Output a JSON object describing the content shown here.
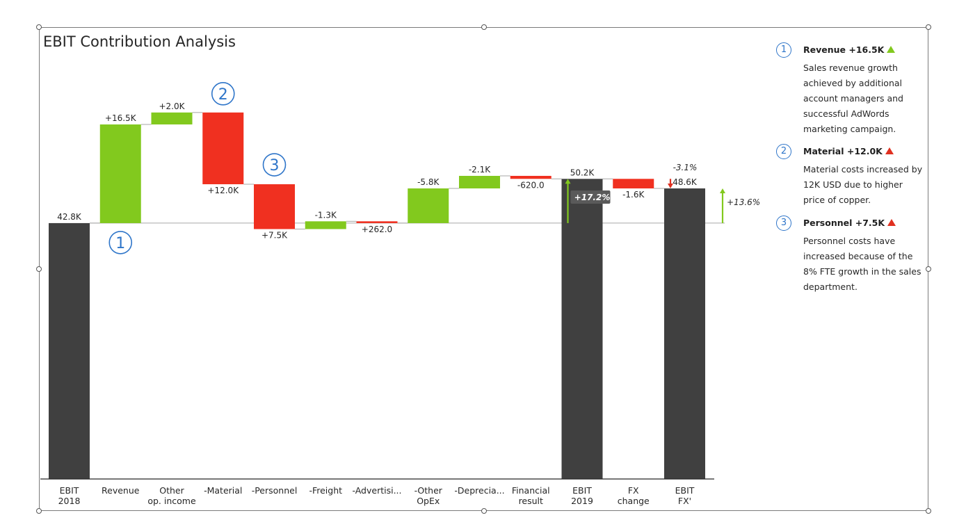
{
  "chart_data": {
    "type": "waterfall",
    "title": "EBIT Contribution Analysis",
    "baseline_value": 0,
    "categories": [
      "EBIT\n2018",
      "Revenue",
      "Other\nop. income",
      "-Material",
      "-Personnel",
      "-Freight",
      "-Advertisi...",
      "-Other\nOpEx",
      "-Deprecia...",
      "Financial\nresult",
      "EBIT\n2019",
      "FX\nchange",
      "EBIT\nFX'"
    ],
    "bars": [
      {
        "kind": "total",
        "start": 0,
        "end": 42.8,
        "label": "42.8K",
        "color": "#404040"
      },
      {
        "kind": "up",
        "start": 42.8,
        "end": 59.3,
        "label": "+16.5K",
        "color": "#82c91e"
      },
      {
        "kind": "up",
        "start": 59.3,
        "end": 61.3,
        "label": "+2.0K",
        "color": "#82c91e"
      },
      {
        "kind": "down",
        "start": 61.3,
        "end": 49.3,
        "label": "+12.0K",
        "color": "#f03020"
      },
      {
        "kind": "down",
        "start": 49.3,
        "end": 41.8,
        "label": "+7.5K",
        "color": "#f03020"
      },
      {
        "kind": "up",
        "start": 41.8,
        "end": 43.1,
        "label": "-1.3K",
        "color": "#82c91e"
      },
      {
        "kind": "down",
        "start": 43.1,
        "end": 42.8,
        "label": "+262.0",
        "color": "#f03020"
      },
      {
        "kind": "up",
        "start": 42.8,
        "end": 48.6,
        "label": "-5.8K",
        "color": "#82c91e"
      },
      {
        "kind": "up",
        "start": 48.6,
        "end": 50.7,
        "label": "-2.1K",
        "color": "#82c91e"
      },
      {
        "kind": "down",
        "start": 50.7,
        "end": 50.2,
        "label": "-620.0",
        "color": "#f03020"
      },
      {
        "kind": "total",
        "start": 0,
        "end": 50.2,
        "label": "50.2K",
        "color": "#404040"
      },
      {
        "kind": "down",
        "start": 50.2,
        "end": 48.6,
        "label": "-1.6K",
        "color": "#f03020"
      },
      {
        "kind": "total",
        "start": 0,
        "end": 48.6,
        "label": "48.6K",
        "color": "#404040"
      }
    ],
    "delta_annotations": [
      {
        "label": "+17.2%",
        "from_value": 42.8,
        "to_value": 50.2,
        "color": "#82c91e"
      },
      {
        "label": "-3.1%",
        "from_value": 50.2,
        "to_value": 48.6,
        "color": "#e03020"
      },
      {
        "label": "+13.6%",
        "from_value": 42.8,
        "to_value": 48.6,
        "color": "#82c91e"
      }
    ],
    "callout_markers": [
      {
        "number": "1",
        "category_index": 1
      },
      {
        "number": "2",
        "category_index": 3
      },
      {
        "number": "3",
        "category_index": 4
      }
    ]
  },
  "notes": [
    {
      "number": "1",
      "title": "Revenue +16.5K",
      "direction": "up",
      "color": "#82c91e",
      "text": "Sales revenue growth achieved by additional account managers and successful AdWords marketing campaign."
    },
    {
      "number": "2",
      "title": "Material +12.0K",
      "direction": "up",
      "color": "#e03020",
      "text": "Material costs increased by 12K USD due to higher price of copper."
    },
    {
      "number": "3",
      "title": "Personnel +7.5K",
      "direction": "up",
      "color": "#e03020",
      "text": "Personnel costs have increased because of the 8% FTE growth in the sales department."
    }
  ]
}
